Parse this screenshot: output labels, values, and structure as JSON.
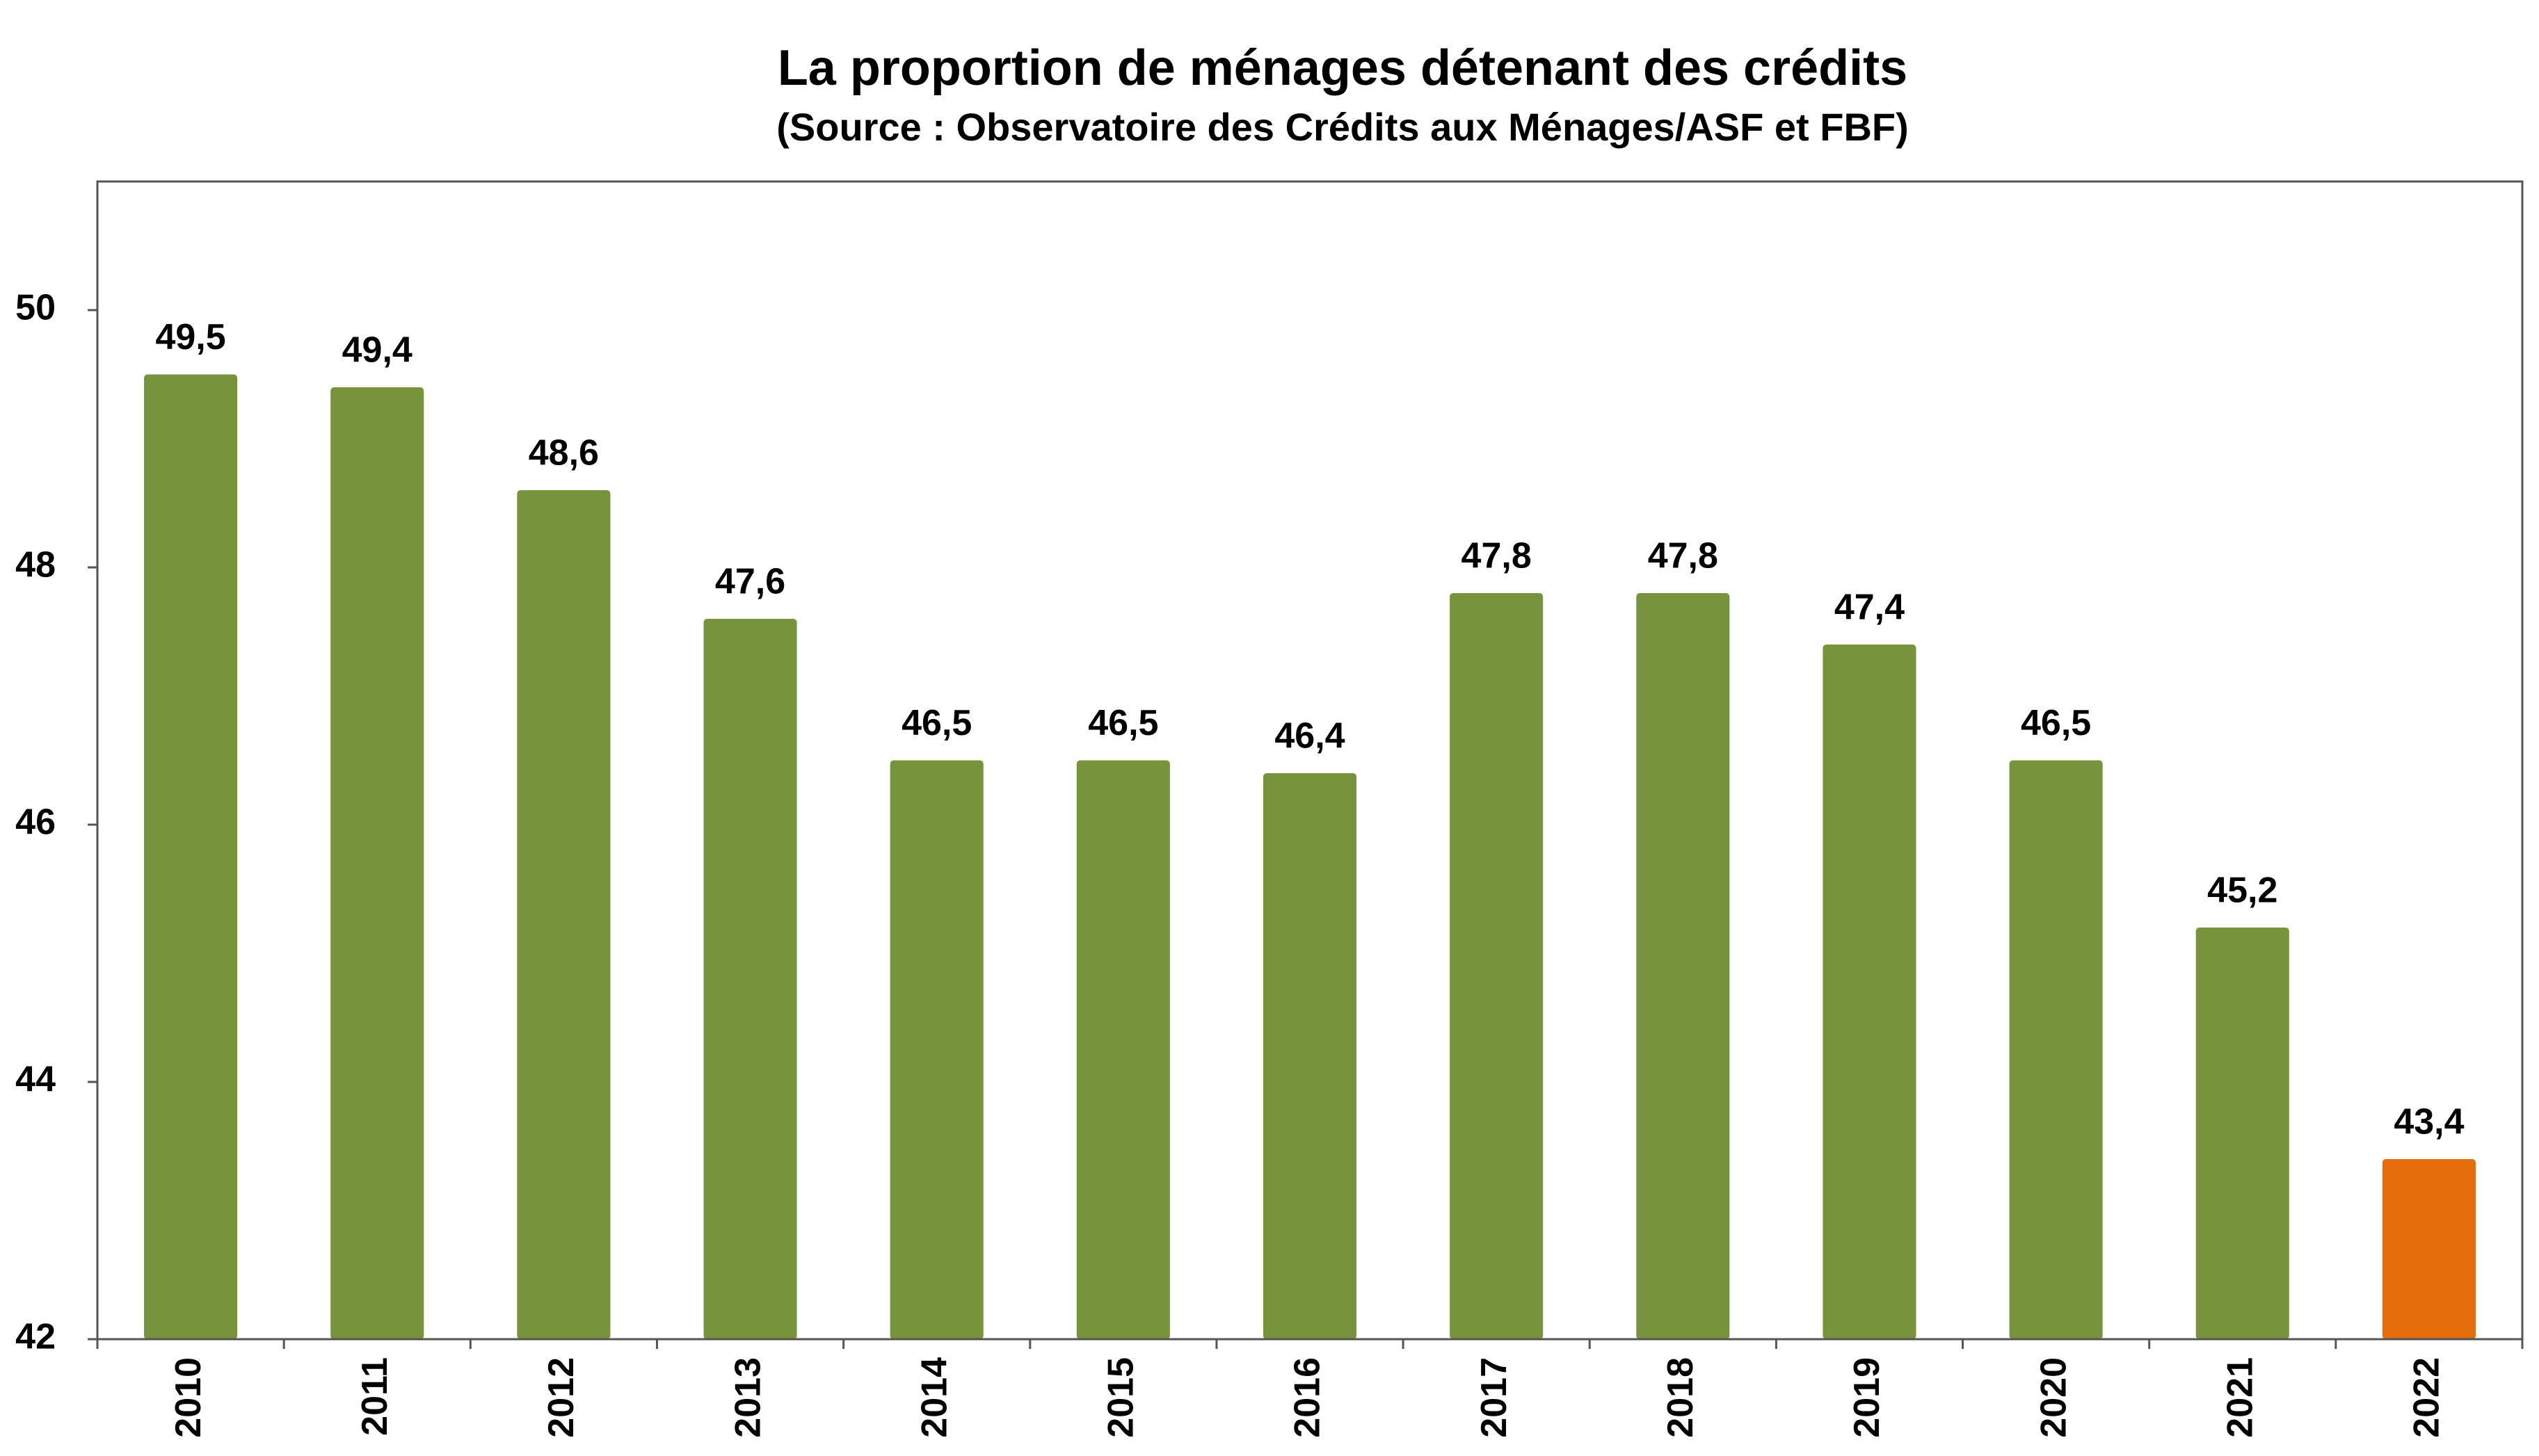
{
  "chart_data": {
    "type": "bar",
    "title": "La proportion de ménages détenant des crédits",
    "subtitle": "(Source : Observatoire des Crédits aux Ménages/ASF et FBF)",
    "categories": [
      "2010",
      "2011",
      "2012",
      "2013",
      "2014",
      "2015",
      "2016",
      "2017",
      "2018",
      "2019",
      "2020",
      "2021",
      "2022"
    ],
    "values": [
      49.5,
      49.4,
      48.6,
      47.6,
      46.5,
      46.5,
      46.4,
      47.8,
      47.8,
      47.4,
      46.5,
      45.2,
      43.4
    ],
    "value_labels": [
      "49,5",
      "49,4",
      "48,6",
      "47,6",
      "46,5",
      "46,5",
      "46,4",
      "47,8",
      "47,8",
      "47,4",
      "46,5",
      "45,2",
      "43,4"
    ],
    "colors": [
      "#77933c",
      "#77933c",
      "#77933c",
      "#77933c",
      "#77933c",
      "#77933c",
      "#77933c",
      "#77933c",
      "#77933c",
      "#77933c",
      "#77933c",
      "#77933c",
      "#e46c0a"
    ],
    "ylim": [
      42,
      51
    ],
    "yticks": [
      42,
      44,
      46,
      48,
      50
    ],
    "grid": false
  }
}
